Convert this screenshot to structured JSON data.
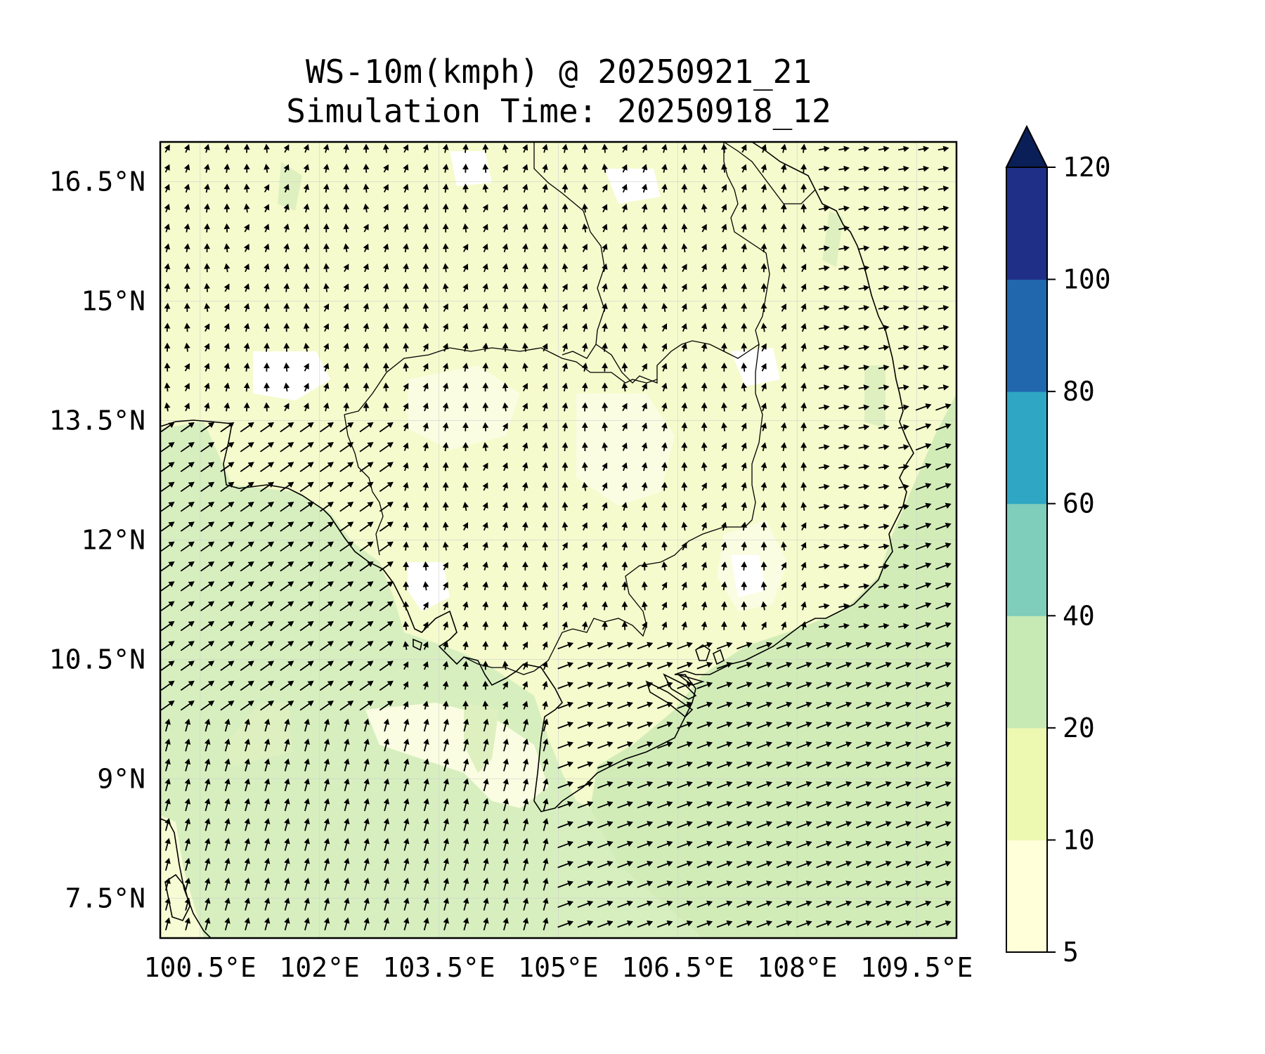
{
  "title": {
    "line1": "WS-10m(kmph) @ 20250921_21",
    "line2": "Simulation Time: 20250918_12"
  },
  "map": {
    "lon_range": [
      100.0,
      110.0
    ],
    "lat_range": [
      7.0,
      17.0
    ],
    "gridlines": true,
    "lon_ticks": [
      {
        "value": 100.5,
        "label": "100.5°E"
      },
      {
        "value": 102.0,
        "label": "102°E"
      },
      {
        "value": 103.5,
        "label": "103.5°E"
      },
      {
        "value": 105.0,
        "label": "105°E"
      },
      {
        "value": 106.5,
        "label": "106.5°E"
      },
      {
        "value": 108.0,
        "label": "108°E"
      },
      {
        "value": 109.5,
        "label": "109.5°E"
      }
    ],
    "lat_ticks": [
      {
        "value": 16.5,
        "label": "16.5°N"
      },
      {
        "value": 15.0,
        "label": "15°N"
      },
      {
        "value": 13.5,
        "label": "13.5°N"
      },
      {
        "value": 12.0,
        "label": "12°N"
      },
      {
        "value": 10.5,
        "label": "10.5°N"
      },
      {
        "value": 9.0,
        "label": "9°N"
      },
      {
        "value": 7.5,
        "label": "7.5°N"
      }
    ]
  },
  "colorbar": {
    "levels": [
      5,
      10,
      20,
      40,
      60,
      80,
      100,
      120
    ],
    "colors": [
      "#ffffd9",
      "#edf8b1",
      "#c7e9b4",
      "#7fcdbb",
      "#2ea6c4",
      "#2167ad",
      "#1f2f88"
    ],
    "extend_color": "#0a1f58",
    "tick_labels": [
      "5",
      "10",
      "20",
      "40",
      "60",
      "80",
      "100",
      "120"
    ]
  },
  "wind_field": {
    "land_color": "#f5fbcc",
    "sea_color": "#d2ecb8",
    "light_color": "#fbfde0"
  }
}
